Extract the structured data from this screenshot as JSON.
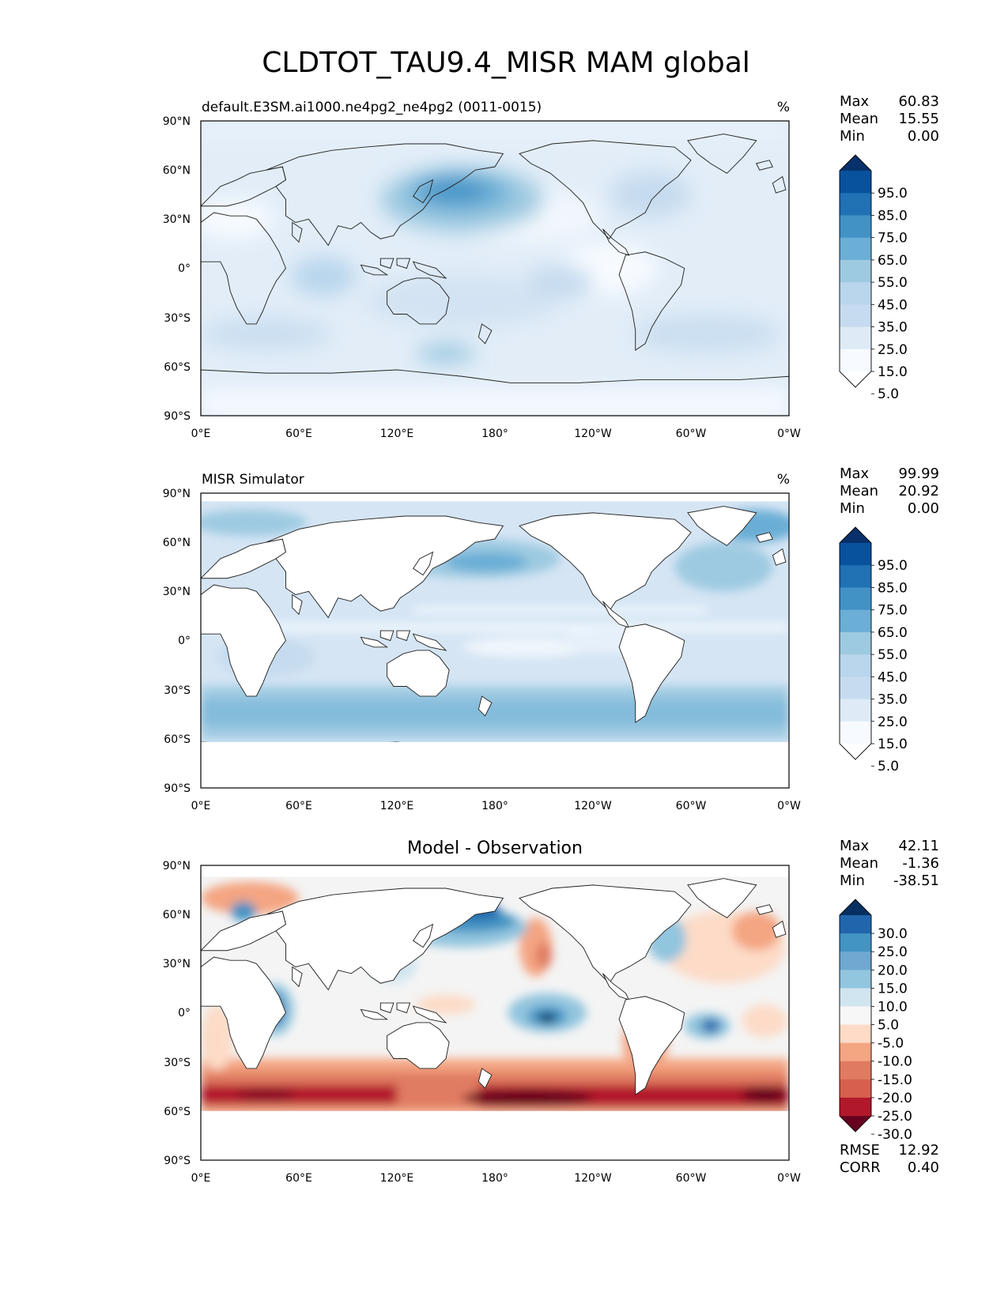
{
  "figure": {
    "title": "CLDTOT_TAU9.4_MISR MAM global"
  },
  "panels": [
    {
      "id": "test",
      "title_left": "default.E3SM.ai1000.ne4pg2_ne4pg2 (0011-0015)",
      "title_center": "",
      "units": "%",
      "stats": [
        {
          "label": "Max",
          "value": "60.83"
        },
        {
          "label": "Mean",
          "value": "15.55"
        },
        {
          "label": "Min",
          "value": "0.00"
        }
      ],
      "colorbar": {
        "levels": [
          "95.0",
          "85.0",
          "75.0",
          "65.0",
          "55.0",
          "45.0",
          "35.0",
          "25.0",
          "15.0",
          "5.0"
        ],
        "colors": [
          "#08306b",
          "#08519c",
          "#2171b5",
          "#4292c6",
          "#6baed6",
          "#9ecae1",
          "#b9d6ec",
          "#c6dbef",
          "#deebf7",
          "#f7fbff",
          "#ffffff"
        ]
      }
    },
    {
      "id": "reference",
      "title_left": "MISR Simulator",
      "title_center": "",
      "units": "%",
      "stats": [
        {
          "label": "Max",
          "value": "99.99"
        },
        {
          "label": "Mean",
          "value": "20.92"
        },
        {
          "label": "Min",
          "value": "0.00"
        }
      ],
      "colorbar": {
        "levels": [
          "95.0",
          "85.0",
          "75.0",
          "65.0",
          "55.0",
          "45.0",
          "35.0",
          "25.0",
          "15.0",
          "5.0"
        ],
        "colors": [
          "#08306b",
          "#08519c",
          "#2171b5",
          "#4292c6",
          "#6baed6",
          "#9ecae1",
          "#b9d6ec",
          "#c6dbef",
          "#deebf7",
          "#f7fbff",
          "#ffffff"
        ]
      }
    },
    {
      "id": "difference",
      "title_left": "",
      "title_center": "Model - Observation",
      "units": "",
      "stats": [
        {
          "label": "Max",
          "value": "42.11"
        },
        {
          "label": "Mean",
          "value": "-1.36"
        },
        {
          "label": "Min",
          "value": "-38.51"
        }
      ],
      "extra_stats": [
        {
          "label": "RMSE",
          "value": "12.92"
        },
        {
          "label": "CORR",
          "value": "0.40"
        }
      ],
      "colorbar": {
        "levels": [
          "30.0",
          "25.0",
          "20.0",
          "15.0",
          "10.0",
          "5.0",
          "-5.0",
          "-10.0",
          "-15.0",
          "-20.0",
          "-25.0",
          "-30.0"
        ],
        "colors": [
          "#053061",
          "#2166ac",
          "#4393c3",
          "#6fa8d0",
          "#92c5de",
          "#d1e5f0",
          "#f7f7f7",
          "#fddbc7",
          "#f4a582",
          "#e07b62",
          "#d6604d",
          "#b2182b",
          "#67001f"
        ]
      }
    }
  ],
  "axes": {
    "y_ticks": [
      "90°N",
      "60°N",
      "30°N",
      "0°",
      "30°S",
      "60°S",
      "90°S"
    ],
    "x_ticks": [
      "0°E",
      "60°E",
      "120°E",
      "180°",
      "120°W",
      "60°W",
      "0°W"
    ],
    "lat_range": [
      -90,
      90
    ],
    "lon_range": [
      0,
      360
    ]
  }
}
